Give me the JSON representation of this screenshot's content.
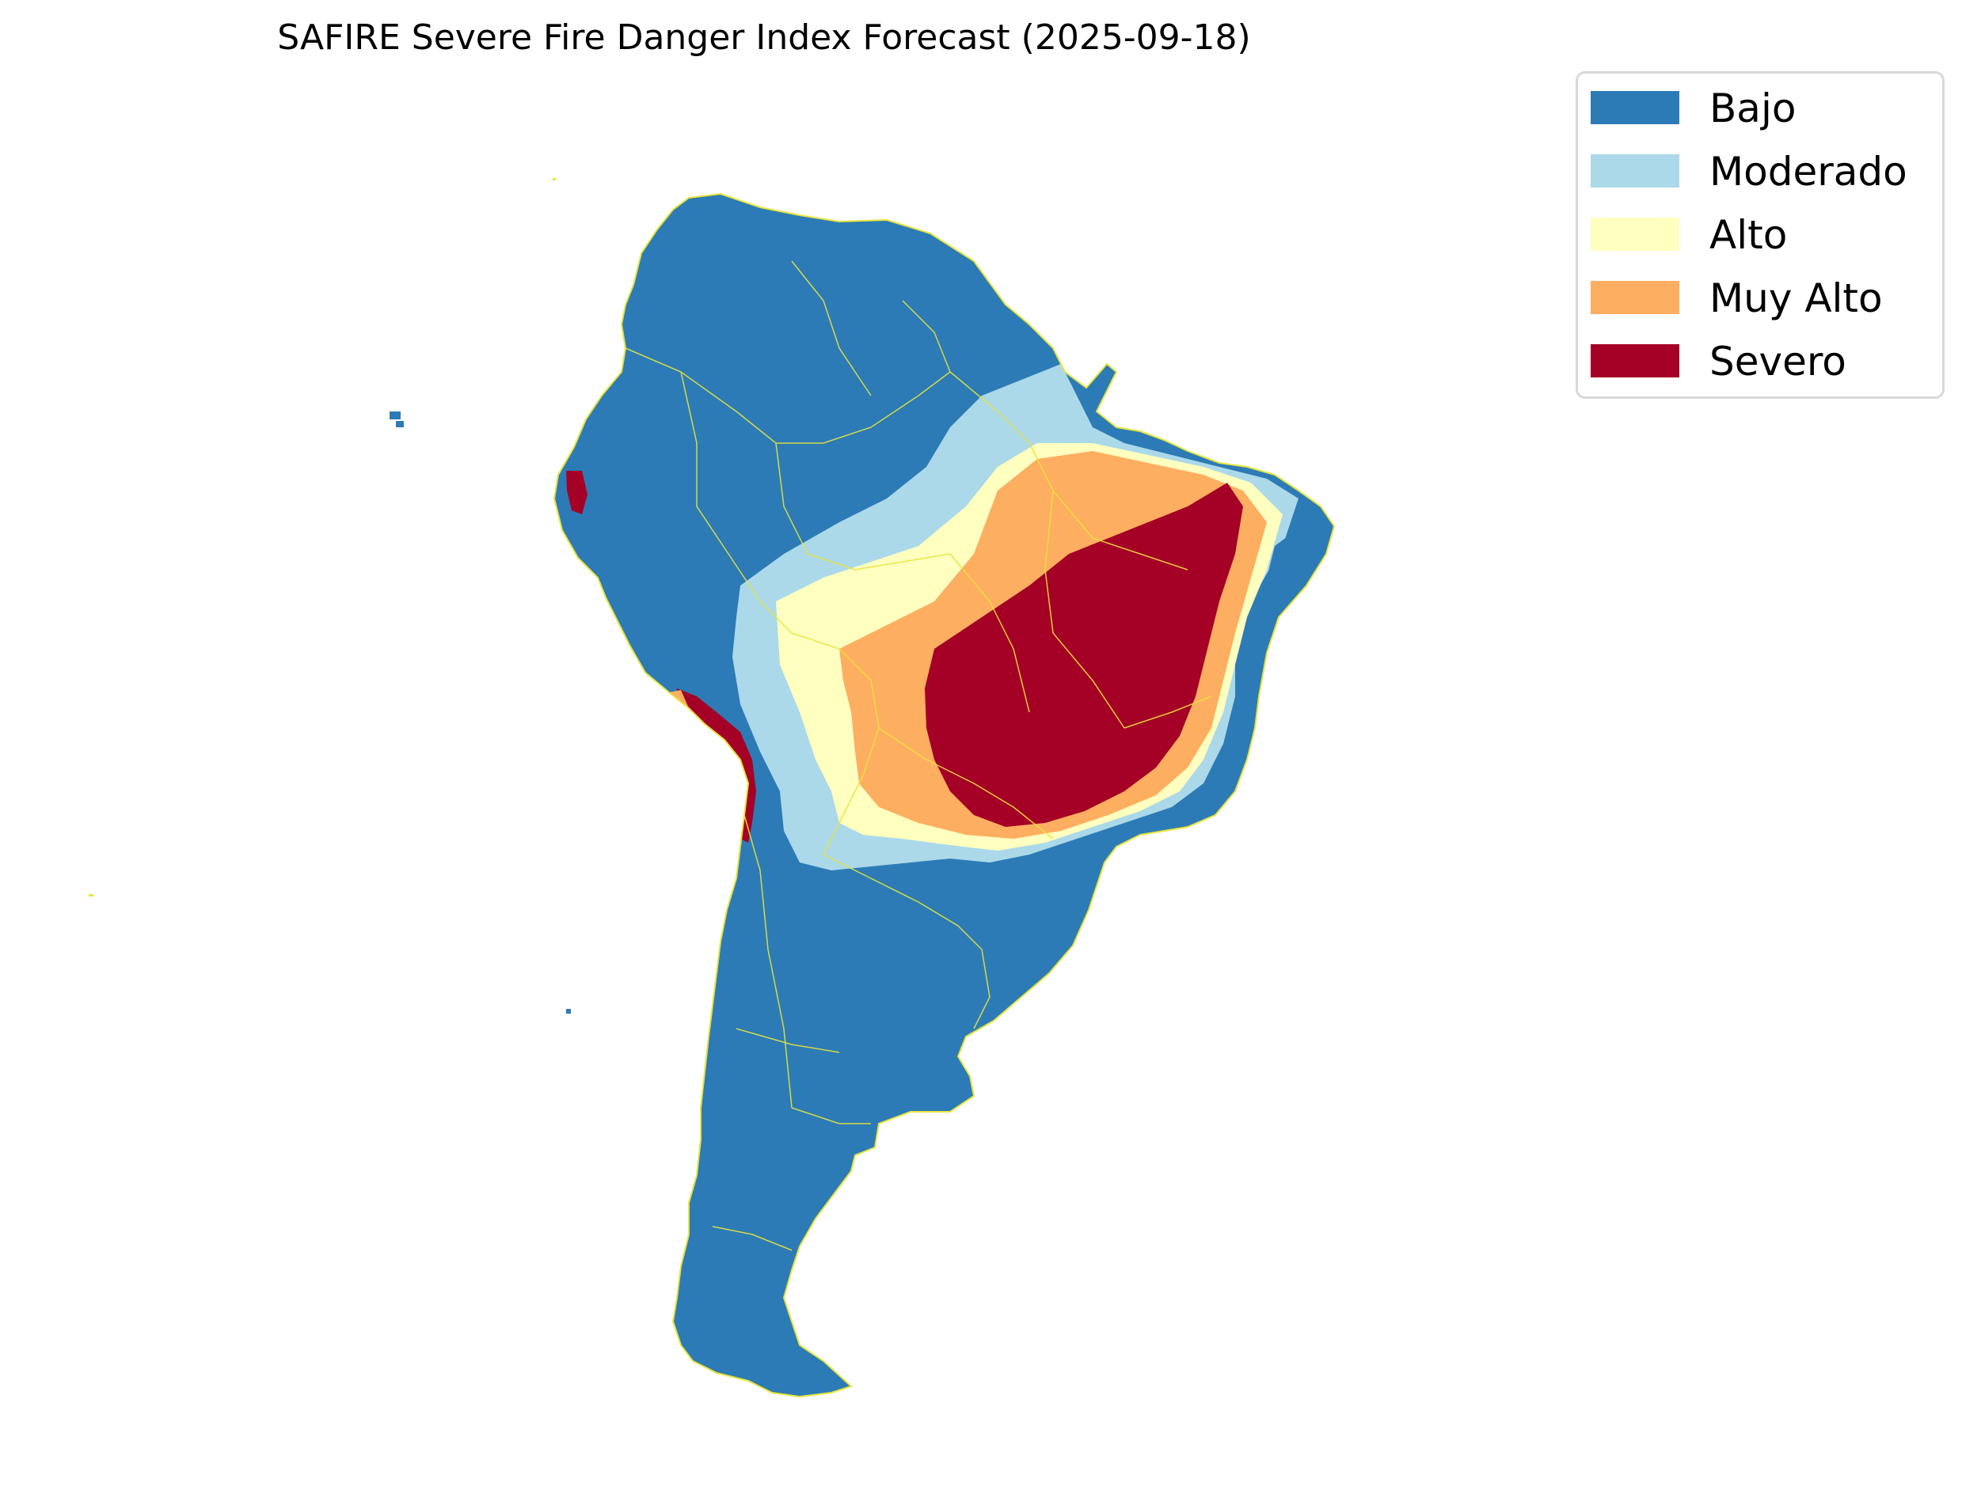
{
  "title": "SAFIRE Severe Fire Danger Index Forecast (2025-09-18)",
  "legend": {
    "placement": "top-right",
    "items": [
      {
        "label": "Bajo",
        "color": "#2c7bb6"
      },
      {
        "label": "Moderado",
        "color": "#abd9e9"
      },
      {
        "label": "Alto",
        "color": "#ffffbf"
      },
      {
        "label": "Muy Alto",
        "color": "#fdae61"
      },
      {
        "label": "Severo",
        "color": "#a50026"
      }
    ]
  },
  "map": {
    "region": "South America",
    "boundary_color": "#e8e43a",
    "background": "#ffffff"
  }
}
